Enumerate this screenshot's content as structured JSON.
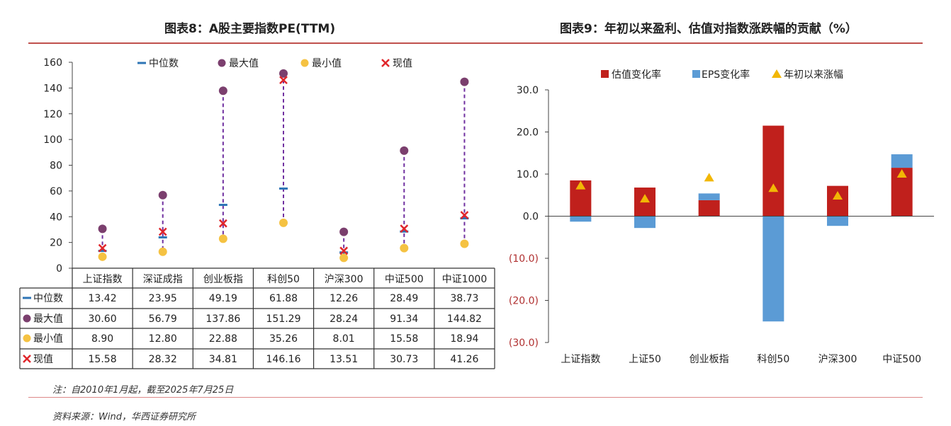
{
  "left_title": "图表8：A股主要指数PE(TTM)",
  "right_title": "图表9：年初以来盈利、估值对指数涨跌幅的贡献（%）",
  "note": "注：自2010年1月起，截至2025年7月25日",
  "source": "资料来源：Wind，华西证券研究所",
  "colors": {
    "median": "#2e75b6",
    "max": "#7b3f6e",
    "min": "#f5c242",
    "current": "#e0262b",
    "valuation": "#c0201c",
    "eps": "#5b9bd5",
    "ytd": "#f2b705",
    "accent": "#c0504d"
  },
  "chart_data": [
    {
      "type": "scatter",
      "title": "图表8：A股主要指数PE(TTM)",
      "categories": [
        "上证指数",
        "深证成指",
        "创业板指",
        "科创50",
        "沪深300",
        "中证500",
        "中证1000"
      ],
      "ylim": [
        0,
        160
      ],
      "yticks": [
        0,
        20,
        40,
        60,
        80,
        100,
        120,
        140,
        160
      ],
      "legend_position": "top",
      "series": [
        {
          "name": "中位数",
          "values": [
            13.42,
            23.95,
            49.19,
            61.88,
            12.26,
            28.49,
            38.73
          ]
        },
        {
          "name": "最大值",
          "values": [
            30.6,
            56.79,
            137.86,
            151.29,
            28.24,
            91.34,
            144.82
          ]
        },
        {
          "name": "最小值",
          "values": [
            8.9,
            12.8,
            22.88,
            35.26,
            8.01,
            15.58,
            18.94
          ]
        },
        {
          "name": "现值",
          "values": [
            15.58,
            28.32,
            34.81,
            146.16,
            13.51,
            30.73,
            41.26
          ]
        }
      ],
      "table": {
        "rows": [
          {
            "label": "中位数",
            "cells": [
              "13.42",
              "23.95",
              "49.19",
              "61.88",
              "12.26",
              "28.49",
              "38.73"
            ]
          },
          {
            "label": "最大值",
            "cells": [
              "30.60",
              "56.79",
              "137.86",
              "151.29",
              "28.24",
              "91.34",
              "144.82"
            ]
          },
          {
            "label": "最小值",
            "cells": [
              "8.90",
              "12.80",
              "22.88",
              "35.26",
              "8.01",
              "15.58",
              "18.94"
            ]
          },
          {
            "label": "现值",
            "cells": [
              "15.58",
              "28.32",
              "34.81",
              "146.16",
              "13.51",
              "30.73",
              "41.26"
            ]
          }
        ]
      }
    },
    {
      "type": "bar",
      "title": "图表9：年初以来盈利、估值对指数涨跌幅的贡献（%）",
      "categories": [
        "上证指数",
        "上证50",
        "创业板指",
        "科创50",
        "沪深300",
        "中证500"
      ],
      "ylim": [
        -30,
        30
      ],
      "yticks": [
        30,
        20,
        10,
        0,
        -10,
        -20,
        -30
      ],
      "ytick_labels": [
        "30.0",
        "20.0",
        "10.0",
        "0.0",
        "(10.0)",
        "(20.0)",
        "(30.0)"
      ],
      "legend_position": "top",
      "series": [
        {
          "name": "估值变化率",
          "values": [
            8.5,
            6.8,
            3.8,
            21.5,
            7.2,
            11.5
          ]
        },
        {
          "name": "EPS变化率",
          "values": [
            -1.3,
            -2.8,
            1.6,
            -25.0,
            -2.3,
            3.2
          ]
        },
        {
          "name": "年初以来涨幅",
          "values": [
            7.2,
            4.1,
            9.1,
            6.6,
            4.8,
            10.0
          ]
        }
      ]
    }
  ]
}
